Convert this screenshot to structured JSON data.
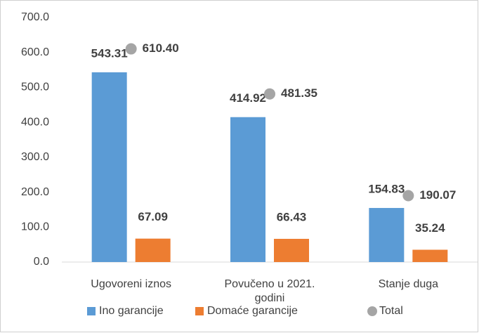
{
  "chart_data": {
    "type": "bar",
    "categories": [
      "Ugovoreni iznos",
      "Povučeno u 2021. godini",
      "Stanje duga"
    ],
    "series": [
      {
        "name": "Ino garancije",
        "color": "#5b9bd5",
        "values": [
          543.31,
          414.92,
          154.83
        ]
      },
      {
        "name": "Domaće garancije",
        "color": "#ed7d31",
        "values": [
          67.09,
          66.43,
          35.24
        ]
      },
      {
        "name": "Total",
        "color": "#a5a5a5",
        "type": "scatter",
        "values": [
          610.4,
          481.35,
          190.07
        ],
        "value_labels": [
          "610.40",
          "481.35",
          "190.07"
        ]
      }
    ],
    "ylim": [
      0,
      700
    ],
    "yticks": [
      {
        "value": 0,
        "label": "0.0"
      },
      {
        "value": 100,
        "label": "100.0"
      },
      {
        "value": 200,
        "label": "200.0"
      },
      {
        "value": 300,
        "label": "300.0"
      },
      {
        "value": 400,
        "label": "400.0"
      },
      {
        "value": 500,
        "label": "500.0"
      },
      {
        "value": 600,
        "label": "600.0"
      },
      {
        "value": 700,
        "label": "700.0"
      }
    ],
    "grid": false,
    "legend": "bottom"
  }
}
